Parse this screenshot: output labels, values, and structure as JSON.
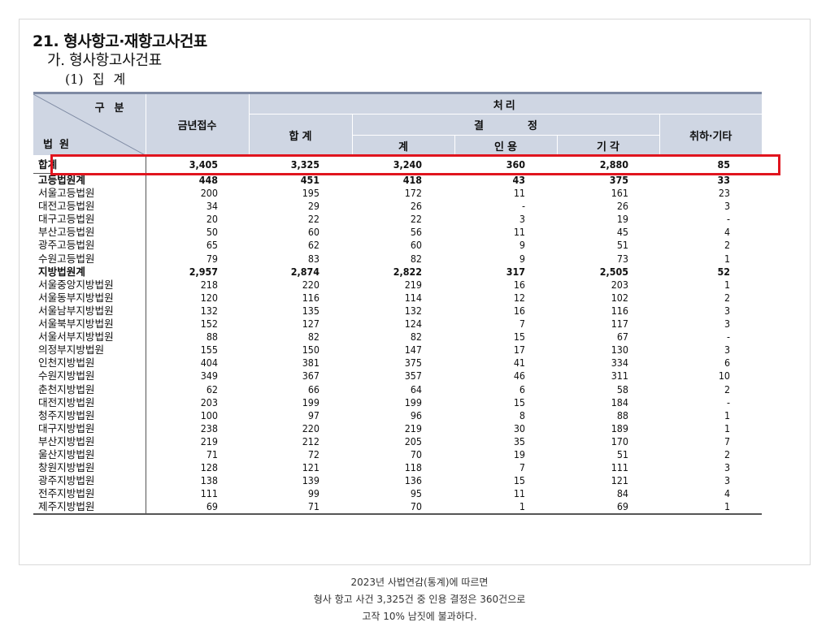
{
  "titles": {
    "section": "21. 형사항고·재항고사건표",
    "sub": "가. 형사항고사건표",
    "subsub": "(1) 집 계"
  },
  "header": {
    "corner_top": "구분",
    "corner_bottom": "법원",
    "received": "금년접수",
    "processed": "처리",
    "total": "합 계",
    "decision": "결 정",
    "decision_sum": "계",
    "granted": "인 용",
    "dismissed": "기 각",
    "withdrawn": "취하·기타"
  },
  "rows": [
    {
      "name": "합계",
      "received": "3,405",
      "total": "3,325",
      "sum": "3,240",
      "granted": "360",
      "dismissed": "2,880",
      "other": "85"
    },
    {
      "name": "고등법원계",
      "received": "448",
      "total": "451",
      "sum": "418",
      "granted": "43",
      "dismissed": "375",
      "other": "33"
    },
    {
      "name": "서울고등법원",
      "received": "200",
      "total": "195",
      "sum": "172",
      "granted": "11",
      "dismissed": "161",
      "other": "23"
    },
    {
      "name": "대전고등법원",
      "received": "34",
      "total": "29",
      "sum": "26",
      "granted": "-",
      "dismissed": "26",
      "other": "3"
    },
    {
      "name": "대구고등법원",
      "received": "20",
      "total": "22",
      "sum": "22",
      "granted": "3",
      "dismissed": "19",
      "other": "-"
    },
    {
      "name": "부산고등법원",
      "received": "50",
      "total": "60",
      "sum": "56",
      "granted": "11",
      "dismissed": "45",
      "other": "4"
    },
    {
      "name": "광주고등법원",
      "received": "65",
      "total": "62",
      "sum": "60",
      "granted": "9",
      "dismissed": "51",
      "other": "2"
    },
    {
      "name": "수원고등법원",
      "received": "79",
      "total": "83",
      "sum": "82",
      "granted": "9",
      "dismissed": "73",
      "other": "1"
    },
    {
      "name": "지방법원계",
      "received": "2,957",
      "total": "2,874",
      "sum": "2,822",
      "granted": "317",
      "dismissed": "2,505",
      "other": "52"
    },
    {
      "name": "서울중앙지방법원",
      "received": "218",
      "total": "220",
      "sum": "219",
      "granted": "16",
      "dismissed": "203",
      "other": "1"
    },
    {
      "name": "서울동부지방법원",
      "received": "120",
      "total": "116",
      "sum": "114",
      "granted": "12",
      "dismissed": "102",
      "other": "2"
    },
    {
      "name": "서울남부지방법원",
      "received": "132",
      "total": "135",
      "sum": "132",
      "granted": "16",
      "dismissed": "116",
      "other": "3"
    },
    {
      "name": "서울북부지방법원",
      "received": "152",
      "total": "127",
      "sum": "124",
      "granted": "7",
      "dismissed": "117",
      "other": "3"
    },
    {
      "name": "서울서부지방법원",
      "received": "88",
      "total": "82",
      "sum": "82",
      "granted": "15",
      "dismissed": "67",
      "other": "-"
    },
    {
      "name": "의정부지방법원",
      "received": "155",
      "total": "150",
      "sum": "147",
      "granted": "17",
      "dismissed": "130",
      "other": "3"
    },
    {
      "name": "인천지방법원",
      "received": "404",
      "total": "381",
      "sum": "375",
      "granted": "41",
      "dismissed": "334",
      "other": "6"
    },
    {
      "name": "수원지방법원",
      "received": "349",
      "total": "367",
      "sum": "357",
      "granted": "46",
      "dismissed": "311",
      "other": "10"
    },
    {
      "name": "춘천지방법원",
      "received": "62",
      "total": "66",
      "sum": "64",
      "granted": "6",
      "dismissed": "58",
      "other": "2"
    },
    {
      "name": "대전지방법원",
      "received": "203",
      "total": "199",
      "sum": "199",
      "granted": "15",
      "dismissed": "184",
      "other": "-"
    },
    {
      "name": "청주지방법원",
      "received": "100",
      "total": "97",
      "sum": "96",
      "granted": "8",
      "dismissed": "88",
      "other": "1"
    },
    {
      "name": "대구지방법원",
      "received": "238",
      "total": "220",
      "sum": "219",
      "granted": "30",
      "dismissed": "189",
      "other": "1"
    },
    {
      "name": "부산지방법원",
      "received": "219",
      "total": "212",
      "sum": "205",
      "granted": "35",
      "dismissed": "170",
      "other": "7"
    },
    {
      "name": "울산지방법원",
      "received": "71",
      "total": "72",
      "sum": "70",
      "granted": "19",
      "dismissed": "51",
      "other": "2"
    },
    {
      "name": "창원지방법원",
      "received": "128",
      "total": "121",
      "sum": "118",
      "granted": "7",
      "dismissed": "111",
      "other": "3"
    },
    {
      "name": "광주지방법원",
      "received": "138",
      "total": "139",
      "sum": "136",
      "granted": "15",
      "dismissed": "121",
      "other": "3"
    },
    {
      "name": "전주지방법원",
      "received": "111",
      "total": "99",
      "sum": "95",
      "granted": "11",
      "dismissed": "84",
      "other": "4"
    },
    {
      "name": "제주지방법원",
      "received": "69",
      "total": "71",
      "sum": "70",
      "granted": "1",
      "dismissed": "69",
      "other": "1"
    }
  ],
  "caption": {
    "line1": "2023년 사법연감(통계)에 따르면",
    "line2": "형사 항고 사건 3,325건 중 인용 결정은 360건으로",
    "line3": "고작 10% 남짓에 불과하다."
  },
  "colors": {
    "highlight": "#e0141e",
    "header_bg": "#cfd6e3",
    "header_rule": "#7e8aa3"
  }
}
